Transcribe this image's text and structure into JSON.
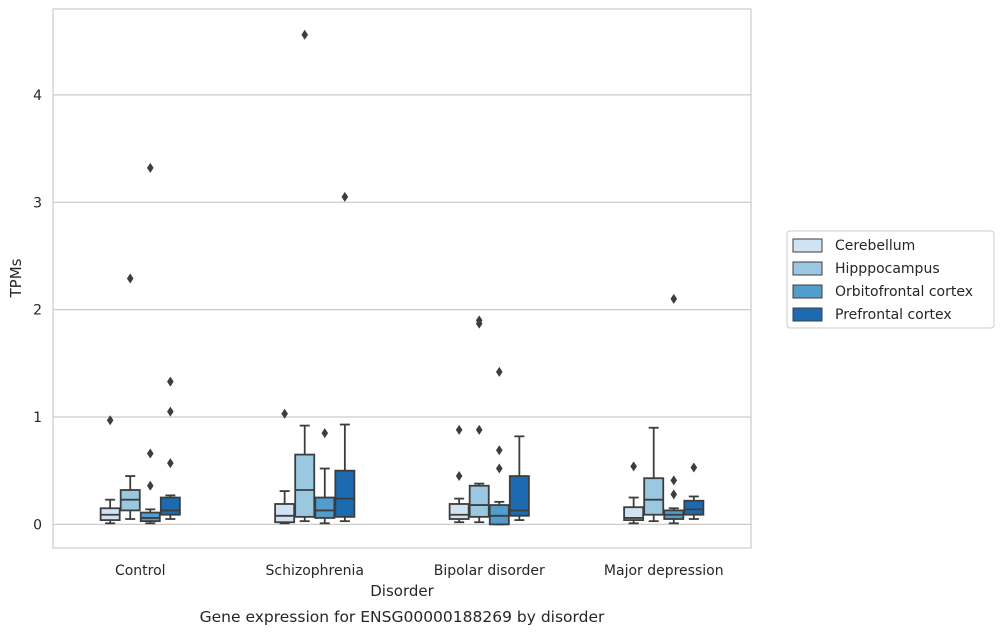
{
  "caption": "Gene expression for ENSG00000188269 by disorder",
  "chart_data": {
    "type": "box",
    "title": "",
    "xlabel": "Disorder",
    "ylabel": "TPMs",
    "ylim": [
      -0.22,
      4.8
    ],
    "yticks": [
      0,
      1,
      2,
      3,
      4
    ],
    "grid": "horizontal",
    "legend_position": "right",
    "categories": [
      "Control",
      "Schizophrenia",
      "Bipolar disorder",
      "Major depression"
    ],
    "series": [
      {
        "name": "Cerebellum",
        "color": "#d1e2f2",
        "boxes": [
          {
            "whisker_low": 0.01,
            "q1": 0.04,
            "median": 0.09,
            "q3": 0.15,
            "whisker_high": 0.23,
            "outliers": [
              0.97
            ]
          },
          {
            "whisker_low": 0.01,
            "q1": 0.02,
            "median": 0.08,
            "q3": 0.19,
            "whisker_high": 0.31,
            "outliers": [
              1.03
            ]
          },
          {
            "whisker_low": 0.02,
            "q1": 0.05,
            "median": 0.09,
            "q3": 0.19,
            "whisker_high": 0.24,
            "outliers": [
              0.45,
              0.88
            ]
          },
          {
            "whisker_low": 0.01,
            "q1": 0.04,
            "median": 0.06,
            "q3": 0.16,
            "whisker_high": 0.25,
            "outliers": [
              0.54
            ]
          }
        ]
      },
      {
        "name": "Hipppocampus",
        "color": "#9ac8e0",
        "boxes": [
          {
            "whisker_low": 0.05,
            "q1": 0.13,
            "median": 0.23,
            "q3": 0.32,
            "whisker_high": 0.45,
            "outliers": [
              2.29
            ]
          },
          {
            "whisker_low": 0.03,
            "q1": 0.07,
            "median": 0.32,
            "q3": 0.65,
            "whisker_high": 0.92,
            "outliers": [
              4.56
            ]
          },
          {
            "whisker_low": 0.02,
            "q1": 0.07,
            "median": 0.18,
            "q3": 0.36,
            "whisker_high": 0.38,
            "outliers": [
              0.88,
              1.87,
              1.9
            ]
          },
          {
            "whisker_low": 0.03,
            "q1": 0.09,
            "median": 0.23,
            "q3": 0.43,
            "whisker_high": 0.9,
            "outliers": []
          }
        ]
      },
      {
        "name": "Orbitofrontal cortex",
        "color": "#529dcc",
        "boxes": [
          {
            "whisker_low": 0.01,
            "q1": 0.03,
            "median": 0.06,
            "q3": 0.11,
            "whisker_high": 0.14,
            "outliers": [
              0.36,
              0.66,
              3.32
            ]
          },
          {
            "whisker_low": 0.01,
            "q1": 0.06,
            "median": 0.13,
            "q3": 0.25,
            "whisker_high": 0.52,
            "outliers": [
              0.85
            ]
          },
          {
            "whisker_low": 0.0,
            "q1": 0.0,
            "median": 0.08,
            "q3": 0.18,
            "whisker_high": 0.21,
            "outliers": [
              0.52,
              0.69,
              1.42
            ]
          },
          {
            "whisker_low": 0.01,
            "q1": 0.05,
            "median": 0.09,
            "q3": 0.13,
            "whisker_high": 0.15,
            "outliers": [
              0.28,
              0.41,
              2.1
            ]
          }
        ]
      },
      {
        "name": "Prefrontal cortex",
        "color": "#1c6aaf",
        "boxes": [
          {
            "whisker_low": 0.05,
            "q1": 0.09,
            "median": 0.13,
            "q3": 0.25,
            "whisker_high": 0.27,
            "outliers": [
              0.57,
              1.05,
              1.33
            ]
          },
          {
            "whisker_low": 0.03,
            "q1": 0.07,
            "median": 0.24,
            "q3": 0.5,
            "whisker_high": 0.93,
            "outliers": [
              3.05
            ]
          },
          {
            "whisker_low": 0.04,
            "q1": 0.08,
            "median": 0.13,
            "q3": 0.45,
            "whisker_high": 0.82,
            "outliers": []
          },
          {
            "whisker_low": 0.05,
            "q1": 0.09,
            "median": 0.14,
            "q3": 0.22,
            "whisker_high": 0.26,
            "outliers": [
              0.53
            ]
          }
        ]
      }
    ]
  }
}
